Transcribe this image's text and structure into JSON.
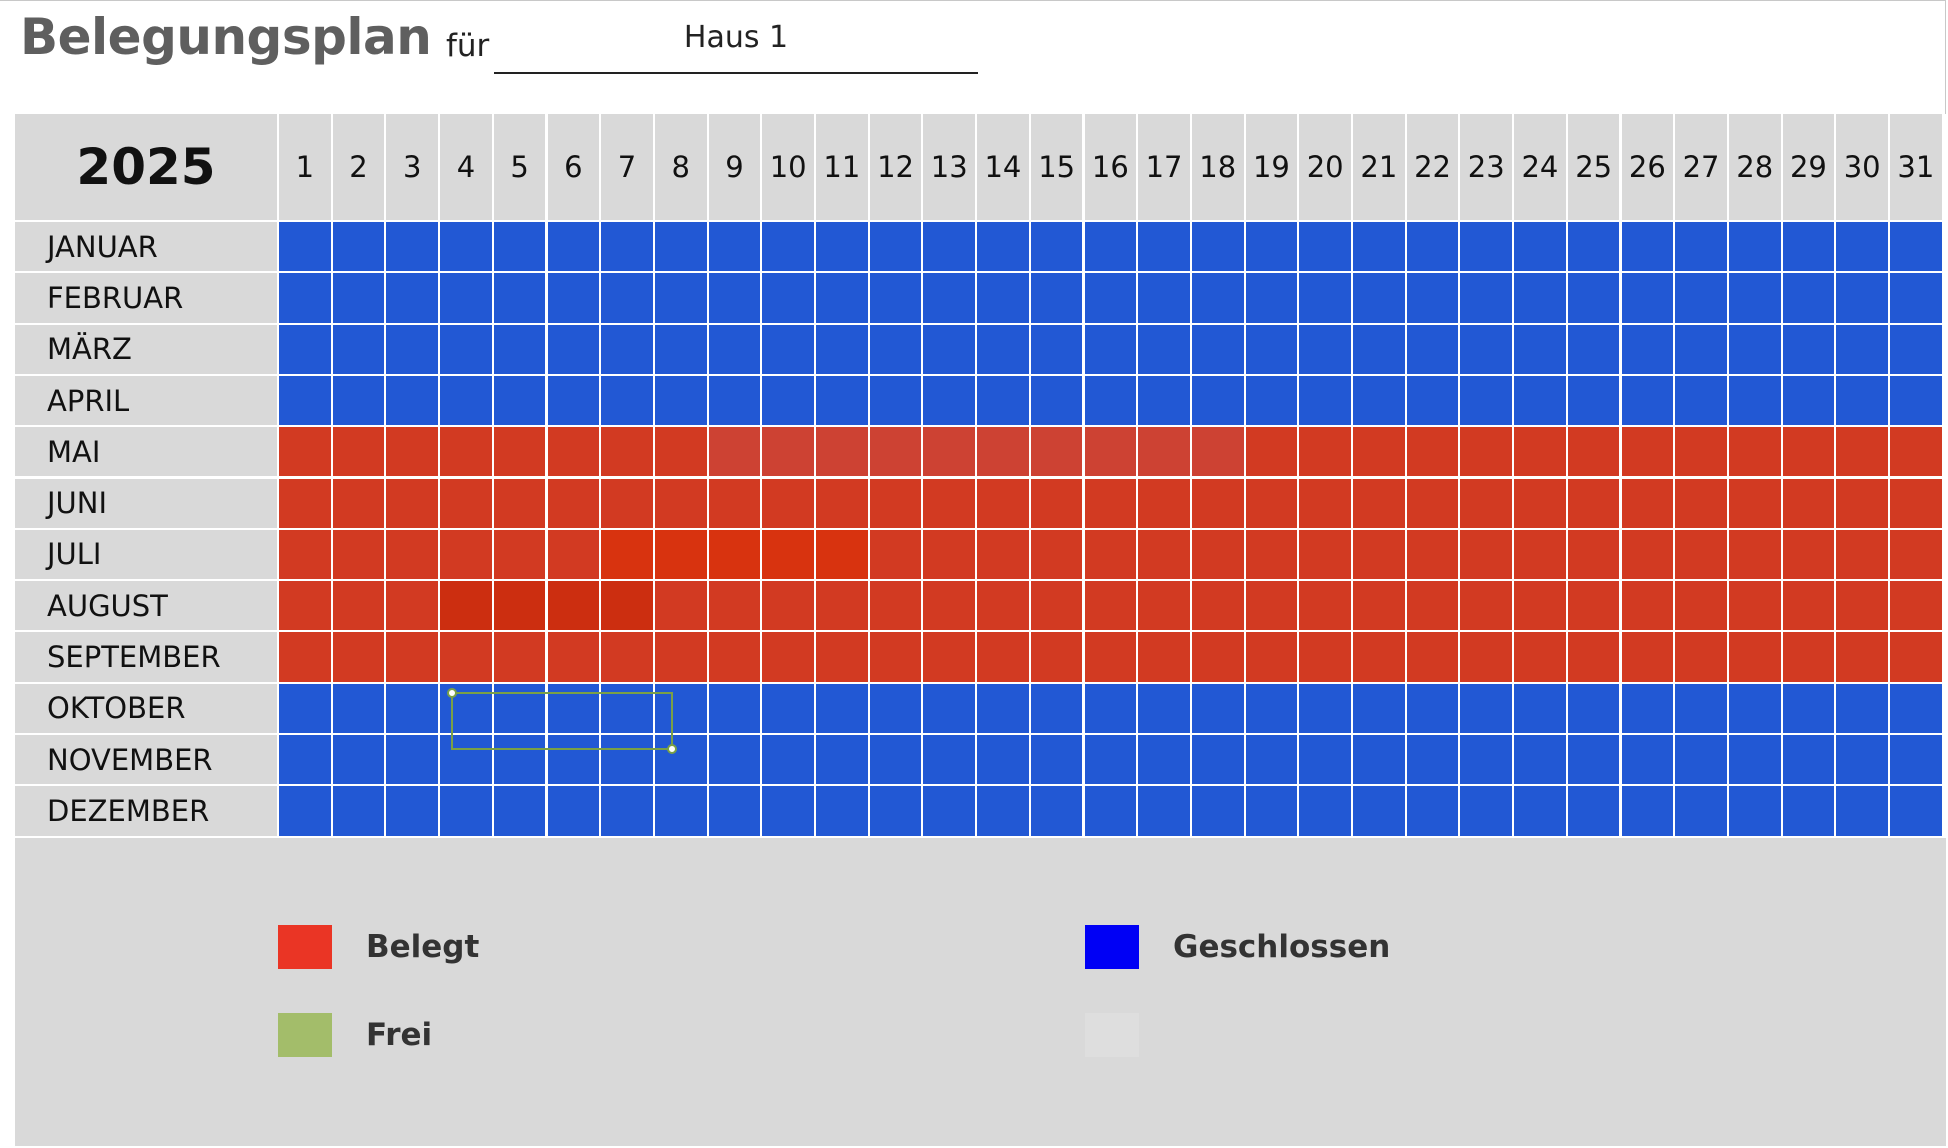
{
  "header": {
    "title": "Belegungsplan",
    "for_label": "für",
    "house": "Haus 1"
  },
  "calendar": {
    "year": "2025",
    "days": [
      "1",
      "2",
      "3",
      "4",
      "5",
      "6",
      "7",
      "8",
      "9",
      "10",
      "11",
      "12",
      "13",
      "14",
      "15",
      "16",
      "17",
      "18",
      "19",
      "20",
      "21",
      "22",
      "23",
      "24",
      "25",
      "26",
      "27",
      "28",
      "29",
      "30",
      "31"
    ],
    "months": [
      {
        "name": "JANUAR",
        "status": "geschlossen"
      },
      {
        "name": "FEBRUAR",
        "status": "geschlossen"
      },
      {
        "name": "MÄRZ",
        "status": "geschlossen"
      },
      {
        "name": "APRIL",
        "status": "geschlossen"
      },
      {
        "name": "MAI",
        "status": "belegt"
      },
      {
        "name": "JUNI",
        "status": "belegt"
      },
      {
        "name": "JULI",
        "status": "belegt"
      },
      {
        "name": "AUGUST",
        "status": "belegt"
      },
      {
        "name": "SEPTEMBER",
        "status": "belegt"
      },
      {
        "name": "OKTOBER",
        "status": "geschlossen"
      },
      {
        "name": "NOVEMBER",
        "status": "geschlossen"
      },
      {
        "name": "DEZEMBER",
        "status": "geschlossen"
      }
    ],
    "selection": {
      "month": "AUGUST",
      "first_day": 4,
      "last_day": 7
    }
  },
  "colors": {
    "belegt_cell": "#d23a22",
    "belegt_cell_faded": "#cd4233",
    "belegt_cell_strong": "#d8330f",
    "belegt_cell_selected": "#cc2e10",
    "geschlossen_cell": "#2258d4",
    "header_bg": "#d9d9d9",
    "grid_line": "#ffffff"
  },
  "legend": [
    {
      "label": "Belegt",
      "color": "#ea3525"
    },
    {
      "label": "Geschlossen",
      "color": "#0000f5"
    },
    {
      "label": "Frei",
      "color": "#a3bd6a"
    },
    {
      "label": "",
      "color": "#dedede"
    }
  ]
}
